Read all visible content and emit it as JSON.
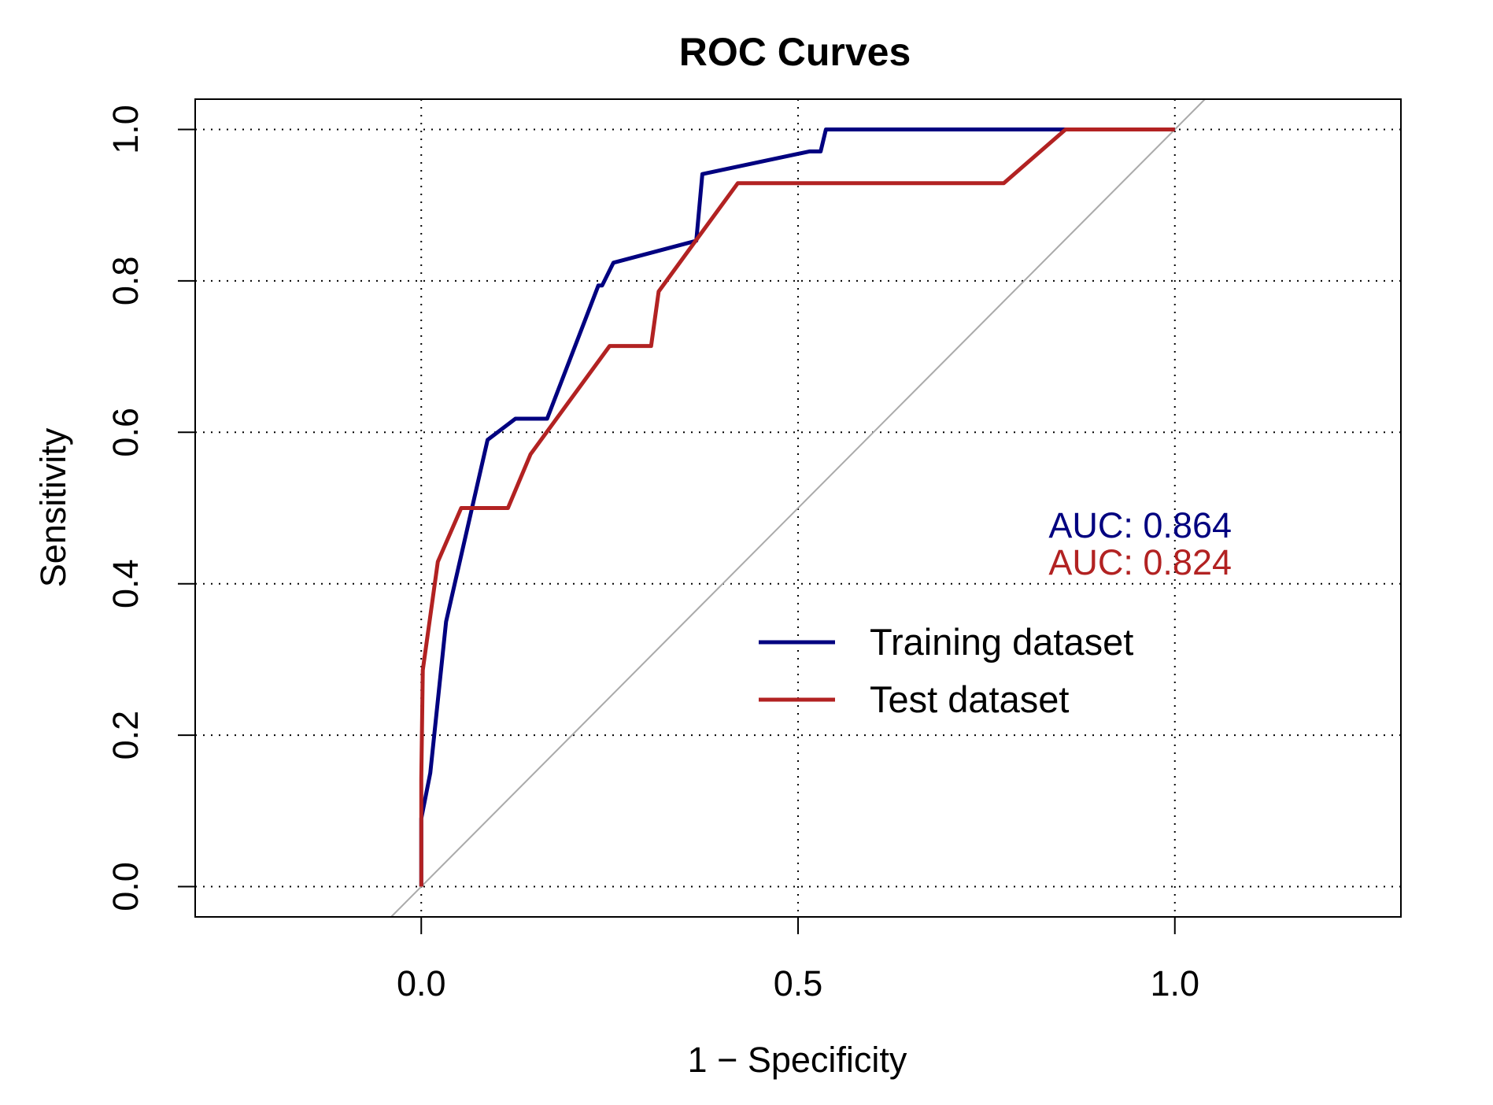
{
  "chart_data": {
    "type": "line",
    "title": "ROC Curves",
    "xlabel": "1 − Specificity",
    "ylabel": "Sensitivity",
    "xlim": [
      -0.3,
      1.3
    ],
    "ylim": [
      -0.04,
      1.04
    ],
    "x_ticks": [
      0.0,
      0.5,
      1.0
    ],
    "x_tick_labels": [
      "0.0",
      "0.5",
      "1.0"
    ],
    "y_ticks": [
      0.0,
      0.2,
      0.4,
      0.6,
      0.8,
      1.0
    ],
    "y_tick_labels": [
      "0.0",
      "0.2",
      "0.4",
      "0.6",
      "0.8",
      "1.0"
    ],
    "grid": true,
    "reference_line": {
      "from": [
        0,
        0
      ],
      "to": [
        1,
        1
      ],
      "color": "#aaaaaa"
    },
    "legend_position": "center-right",
    "series": [
      {
        "name": "Training dataset",
        "color": "#000080",
        "auc_label": "AUC: 0.864",
        "x": [
          0.0,
          0.0,
          0.012,
          0.033,
          0.088,
          0.125,
          0.167,
          0.235,
          0.24,
          0.255,
          0.365,
          0.373,
          0.515,
          0.53,
          0.537,
          0.85,
          1.0
        ],
        "y": [
          0.0,
          0.09,
          0.15,
          0.35,
          0.59,
          0.618,
          0.618,
          0.794,
          0.794,
          0.824,
          0.853,
          0.941,
          0.971,
          0.971,
          1.0,
          1.0,
          1.0
        ]
      },
      {
        "name": "Test dataset",
        "color": "#B22222",
        "auc_label": "AUC: 0.824",
        "x": [
          0.0,
          0.0,
          0.002,
          0.022,
          0.053,
          0.115,
          0.145,
          0.25,
          0.305,
          0.315,
          0.367,
          0.42,
          0.773,
          0.855,
          1.0
        ],
        "y": [
          0.0,
          0.143,
          0.286,
          0.429,
          0.5,
          0.5,
          0.571,
          0.714,
          0.714,
          0.786,
          0.857,
          0.929,
          0.929,
          1.0,
          1.0
        ]
      }
    ]
  }
}
